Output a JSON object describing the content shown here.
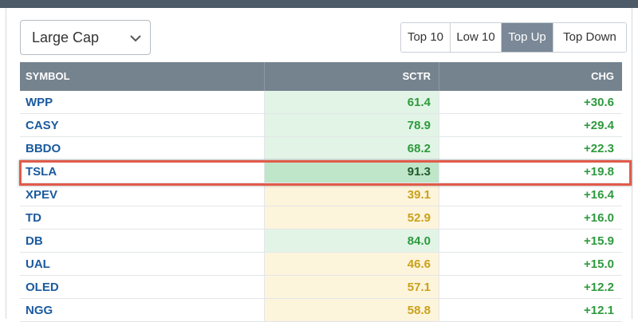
{
  "cap_select": {
    "value": "Large Cap",
    "icon": "chevron-down-icon"
  },
  "filter_buttons": [
    {
      "label": "Top 10",
      "active": false
    },
    {
      "label": "Low 10",
      "active": false
    },
    {
      "label": "Top Up",
      "active": true
    },
    {
      "label": "Top Down",
      "active": false
    }
  ],
  "table": {
    "headers": {
      "symbol": "SYMBOL",
      "sctr": "SCTR",
      "chg": "CHG"
    },
    "rows": [
      {
        "symbol": "WPP",
        "sctr": "61.4",
        "chg": "+30.6",
        "sctr_tone": "green"
      },
      {
        "symbol": "CASY",
        "sctr": "78.9",
        "chg": "+29.4",
        "sctr_tone": "green"
      },
      {
        "symbol": "BBDO",
        "sctr": "68.2",
        "chg": "+22.3",
        "sctr_tone": "green"
      },
      {
        "symbol": "TSLA",
        "sctr": "91.3",
        "chg": "+19.8",
        "sctr_tone": "strong",
        "highlighted": true
      },
      {
        "symbol": "XPEV",
        "sctr": "39.1",
        "chg": "+16.4",
        "sctr_tone": "yellow"
      },
      {
        "symbol": "TD",
        "sctr": "52.9",
        "chg": "+16.0",
        "sctr_tone": "yellow"
      },
      {
        "symbol": "DB",
        "sctr": "84.0",
        "chg": "+15.9",
        "sctr_tone": "green"
      },
      {
        "symbol": "UAL",
        "sctr": "46.6",
        "chg": "+15.0",
        "sctr_tone": "yellow"
      },
      {
        "symbol": "OLED",
        "sctr": "57.1",
        "chg": "+12.2",
        "sctr_tone": "yellow"
      },
      {
        "symbol": "NGG",
        "sctr": "58.8",
        "chg": "+12.1",
        "sctr_tone": "yellow"
      }
    ]
  },
  "colors": {
    "header_bg": "#75838f",
    "active_button": "#7a8897",
    "symbol_link": "#1a5a9e",
    "positive": "#2e9a3e",
    "highlight_border": "#e25b4b"
  }
}
